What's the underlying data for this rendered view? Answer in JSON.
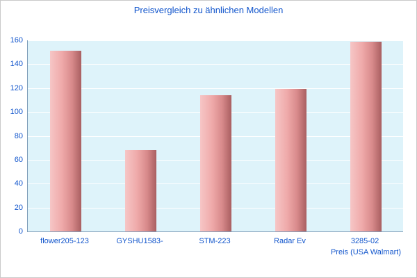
{
  "chart_data": {
    "type": "bar",
    "title": "Preisvergleich zu ähnlichen Modellen",
    "xlabel": "Preis (USA Walmart)",
    "ylabel": "",
    "categories": [
      "flower205-123",
      "GYSHU1583-",
      "STM-223",
      "Radar Ev",
      "3285-02"
    ],
    "values": [
      151,
      68,
      114,
      119,
      159
    ],
    "ylim": [
      0,
      160
    ],
    "ytick_step": 20,
    "grid": true,
    "legend": false,
    "colors": {
      "title_text": "#1155cc",
      "axis_text": "#1155cc",
      "plot_background": "#def3fa",
      "gridline": "#ffffff",
      "axis_line": "#7f9db9",
      "bar_light": "#f6c6c6",
      "bar_dark": "#a95f61",
      "page_background": "#ffffff",
      "frame_border": "#c9c9c9"
    }
  }
}
